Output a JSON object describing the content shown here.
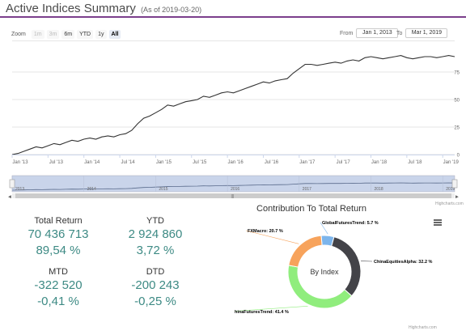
{
  "header": {
    "title": "Active Indices Summary",
    "subtitle": "(As of 2019-03-20)"
  },
  "zoom": {
    "label": "Zoom",
    "buttons": [
      {
        "label": "1m",
        "state": "disabled"
      },
      {
        "label": "3m",
        "state": "disabled"
      },
      {
        "label": "6m",
        "state": "normal"
      },
      {
        "label": "YTD",
        "state": "normal"
      },
      {
        "label": "1y",
        "state": "normal"
      },
      {
        "label": "All",
        "state": "active"
      }
    ]
  },
  "range": {
    "from_label": "From",
    "from_value": "Jan 1, 2013",
    "to_label": "To",
    "to_value": "Mar 1, 2019"
  },
  "credits": "Highcharts.com",
  "stats": {
    "total_return": {
      "label": "Total Return",
      "value": "70 436 713",
      "pct": "89,54 %"
    },
    "ytd": {
      "label": "YTD",
      "value": "2 924 860",
      "pct": "3,72 %"
    },
    "mtd": {
      "label": "MTD",
      "value": "-322 520",
      "pct": "-0,41 %"
    },
    "dtd": {
      "label": "DTD",
      "value": "-200 243",
      "pct": "-0,25 %"
    }
  },
  "colors": {
    "accent": "#7b3f8c",
    "stat_value": "#3d8a84",
    "line": "#333333",
    "navigator_fill": "#c9d4ea"
  },
  "chart_data": [
    {
      "type": "line",
      "title": "",
      "xlabel": "",
      "ylabel": "",
      "x_tick_labels": [
        "Jan '13",
        "Jul '13",
        "Jan '14",
        "Jul '14",
        "Jan '15",
        "Jul '15",
        "Jan '16",
        "Jul '16",
        "Jan '17",
        "Jul '17",
        "Jan '18",
        "Jul '18",
        "Jan '19"
      ],
      "y_tick_labels": [
        "0",
        "25",
        "50",
        "75"
      ],
      "ylim": [
        0,
        100
      ],
      "navigator_labels": [
        "2013",
        "2014",
        "2015",
        "2016",
        "2017",
        "2018",
        "2019"
      ],
      "x": [
        "2013-01",
        "2013-02",
        "2013-03",
        "2013-04",
        "2013-05",
        "2013-06",
        "2013-07",
        "2013-08",
        "2013-09",
        "2013-10",
        "2013-11",
        "2013-12",
        "2014-01",
        "2014-02",
        "2014-03",
        "2014-04",
        "2014-05",
        "2014-06",
        "2014-07",
        "2014-08",
        "2014-09",
        "2014-10",
        "2014-11",
        "2014-12",
        "2015-01",
        "2015-02",
        "2015-03",
        "2015-04",
        "2015-05",
        "2015-06",
        "2015-07",
        "2015-08",
        "2015-09",
        "2015-10",
        "2015-11",
        "2015-12",
        "2016-01",
        "2016-02",
        "2016-03",
        "2016-04",
        "2016-05",
        "2016-06",
        "2016-07",
        "2016-08",
        "2016-09",
        "2016-10",
        "2016-11",
        "2016-12",
        "2017-01",
        "2017-02",
        "2017-03",
        "2017-04",
        "2017-05",
        "2017-06",
        "2017-07",
        "2017-08",
        "2017-09",
        "2017-10",
        "2017-11",
        "2017-12",
        "2018-01",
        "2018-02",
        "2018-03",
        "2018-04",
        "2018-05",
        "2018-06",
        "2018-07",
        "2018-08",
        "2018-09",
        "2018-10",
        "2018-11",
        "2018-12",
        "2019-01",
        "2019-02",
        "2019-03"
      ],
      "values": [
        0,
        1,
        3,
        5,
        7,
        6,
        8,
        10,
        9,
        11,
        13,
        12,
        14,
        15,
        14,
        16,
        17,
        16,
        18,
        19,
        22,
        28,
        33,
        35,
        38,
        41,
        45,
        44,
        46,
        48,
        49,
        50,
        53,
        52,
        54,
        56,
        57,
        56,
        58,
        60,
        62,
        64,
        66,
        65,
        67,
        68,
        69,
        74,
        78,
        82,
        82,
        81,
        82,
        83,
        84,
        83,
        85,
        86,
        85,
        88,
        89,
        88,
        87,
        88,
        89,
        90,
        88,
        87,
        88,
        89,
        89,
        88,
        89,
        90,
        89
      ]
    },
    {
      "type": "pie",
      "title": "Contribution To Total Return",
      "center_label": "By Index",
      "slices": [
        {
          "name": "GlobalFuturesTrend",
          "label": "GlobalFuturesTrend: 5.7 %",
          "value": 5.7,
          "color": "#7cb5ec"
        },
        {
          "name": "ChinaEquitiesAlpha",
          "label": "ChinaEquitiesAlpha: 32.2 %",
          "value": 32.2,
          "color": "#434348"
        },
        {
          "name": "ChinaFuturesTrend",
          "label": "ChinaFuturesTrend: 41.4 %",
          "value": 41.4,
          "color": "#90ed7d"
        },
        {
          "name": "FXMacro",
          "label": "FXMacro: 20.7 %",
          "value": 20.7,
          "color": "#f7a35c"
        }
      ]
    }
  ]
}
